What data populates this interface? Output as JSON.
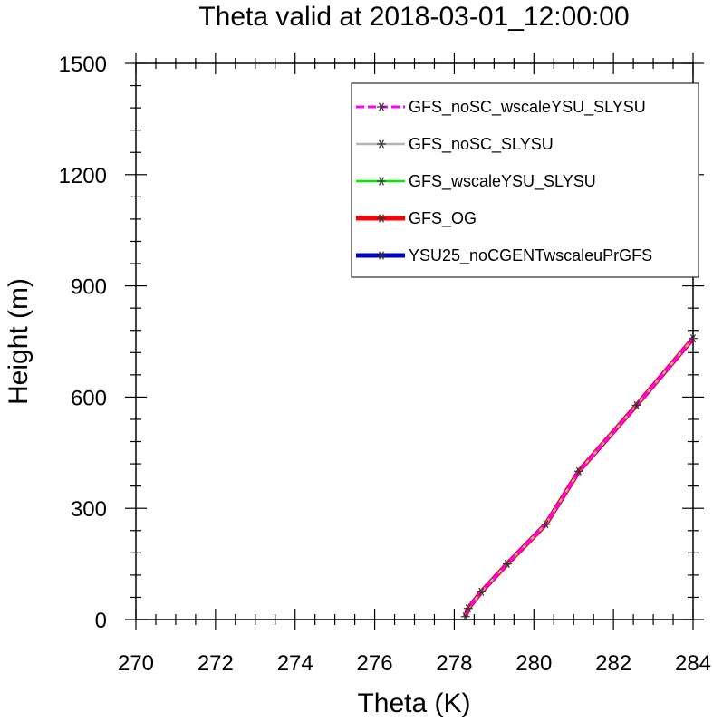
{
  "chart_data": {
    "type": "line",
    "title": "Theta valid at 2018-03-01_12:00:00",
    "xlabel": "Theta (K)",
    "ylabel": "Height (m)",
    "xlim": [
      270,
      284
    ],
    "ylim": [
      0,
      1500
    ],
    "xticks": [
      "270",
      "272",
      "274",
      "276",
      "278",
      "280",
      "282",
      "284"
    ],
    "yticks": [
      "0",
      "300",
      "600",
      "900",
      "1200",
      "1500"
    ],
    "legend_position": "top-right",
    "grid": false,
    "series": [
      {
        "name": "YSU25_noCGENTwscaleuPrGFS",
        "color": "#0000cc",
        "style": "solid",
        "marker": "asterisk",
        "x": [
          278.28,
          278.35,
          278.68,
          279.33,
          280.3,
          281.13,
          282.58,
          284.0
        ],
        "y": [
          8,
          30,
          75,
          150,
          257,
          400,
          578,
          758
        ]
      },
      {
        "name": "GFS_OG",
        "color": "#ff0000",
        "style": "solid",
        "marker": "asterisk",
        "x": [
          278.28,
          278.35,
          278.68,
          279.33,
          280.3,
          281.13,
          282.58,
          284.0
        ],
        "y": [
          8,
          30,
          75,
          150,
          257,
          400,
          578,
          758
        ]
      },
      {
        "name": "GFS_wscaleYSU_SLYSU",
        "color": "#00ee00",
        "style": "solid",
        "marker": "asterisk",
        "x": [
          278.28,
          278.35,
          278.68,
          279.33,
          280.3,
          281.13,
          282.58,
          284.0
        ],
        "y": [
          8,
          30,
          75,
          150,
          257,
          400,
          578,
          758
        ]
      },
      {
        "name": "GFS_noSC_SLYSU",
        "color": "#b4b4b4",
        "style": "solid",
        "marker": "asterisk",
        "x": [
          278.28,
          278.35,
          278.68,
          279.33,
          280.3,
          281.13,
          282.58,
          284.0
        ],
        "y": [
          8,
          30,
          75,
          150,
          257,
          400,
          578,
          758
        ]
      },
      {
        "name": "GFS_noSC_wscaleYSU_SLYSU",
        "color": "#ff00ff",
        "style": "dashed",
        "marker": "asterisk",
        "x": [
          278.28,
          278.35,
          278.68,
          279.33,
          280.3,
          281.13,
          282.58,
          284.0
        ],
        "y": [
          8,
          30,
          75,
          150,
          257,
          400,
          578,
          758
        ]
      }
    ],
    "legend_order": [
      "GFS_noSC_wscaleYSU_SLYSU",
      "GFS_noSC_SLYSU",
      "GFS_wscaleYSU_SLYSU",
      "GFS_OG",
      "YSU25_noCGENTwscaleuPrGFS"
    ]
  }
}
